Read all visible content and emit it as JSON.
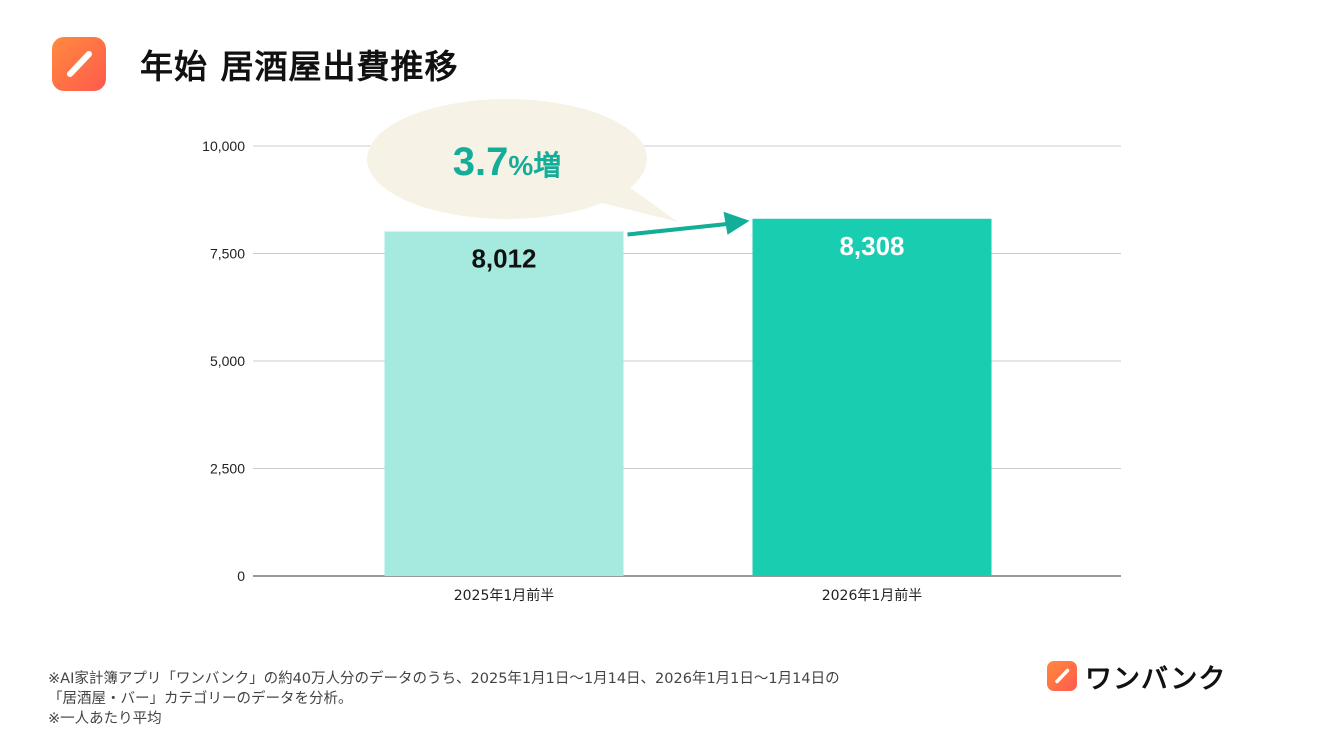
{
  "header": {
    "title": "年始 居酒屋出費推移",
    "app_icon": "pencil-slash-icon"
  },
  "chart_data": {
    "type": "bar",
    "categories": [
      "2025年1月前半",
      "2026年1月前半"
    ],
    "values": [
      8012,
      8308
    ],
    "data_labels": [
      "8,012",
      "8,308"
    ],
    "yticks": [
      0,
      2500,
      5000,
      7500,
      10000
    ],
    "ytick_labels": [
      "0",
      "2,500",
      "5,000",
      "7,500",
      "10,000"
    ],
    "ylim": [
      0,
      10000
    ],
    "grid": true,
    "bar_colors": [
      "#a6eadf",
      "#19cdb1"
    ],
    "label_colors": [
      "#111111",
      "#ffffff"
    ],
    "arrow_color": "#14ad97",
    "annotation": {
      "text_main": "3.7",
      "text_suffix": "%増",
      "bubble_color": "#f6f3e6",
      "text_color": "#14ad97"
    }
  },
  "footnotes": [
    "※AI家計簿アプリ「ワンバンク」の約40万人分のデータのうち、2025年1月1日〜1月14日、2026年1月1日〜1月14日の",
    "「居酒屋・バー」カテゴリーのデータを分析。",
    "※一人あたり平均"
  ],
  "brand": {
    "name": "ワンバンク",
    "icon": "pencil-slash-icon"
  }
}
